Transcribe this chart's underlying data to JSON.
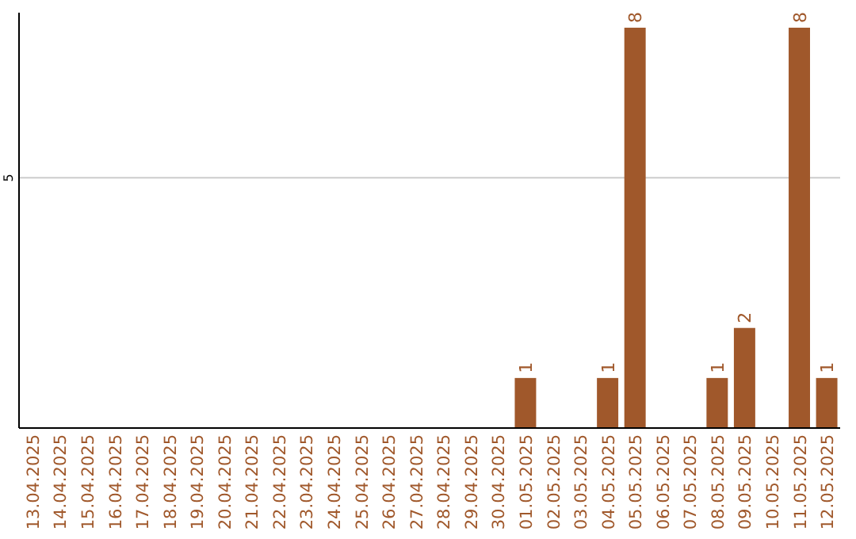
{
  "chart_data": {
    "type": "bar",
    "categories": [
      "13.04.2025",
      "14.04.2025",
      "15.04.2025",
      "16.04.2025",
      "17.04.2025",
      "18.04.2025",
      "19.04.2025",
      "20.04.2025",
      "21.04.2025",
      "22.04.2025",
      "23.04.2025",
      "24.04.2025",
      "25.04.2025",
      "26.04.2025",
      "27.04.2025",
      "28.04.2025",
      "29.04.2025",
      "30.04.2025",
      "01.05.2025",
      "02.05.2025",
      "03.05.2025",
      "04.05.2025",
      "05.05.2025",
      "06.05.2025",
      "07.05.2025",
      "08.05.2025",
      "09.05.2025",
      "10.05.2025",
      "11.05.2025",
      "12.05.2025"
    ],
    "values": [
      null,
      null,
      null,
      null,
      null,
      null,
      null,
      null,
      null,
      null,
      null,
      null,
      null,
      null,
      null,
      null,
      null,
      null,
      1,
      null,
      null,
      1,
      8,
      null,
      null,
      1,
      2,
      null,
      8,
      1
    ],
    "color": "#a0582b",
    "ylim": [
      0,
      8.3
    ],
    "yticks": [
      5
    ],
    "grid": "y",
    "data_labels": true
  }
}
